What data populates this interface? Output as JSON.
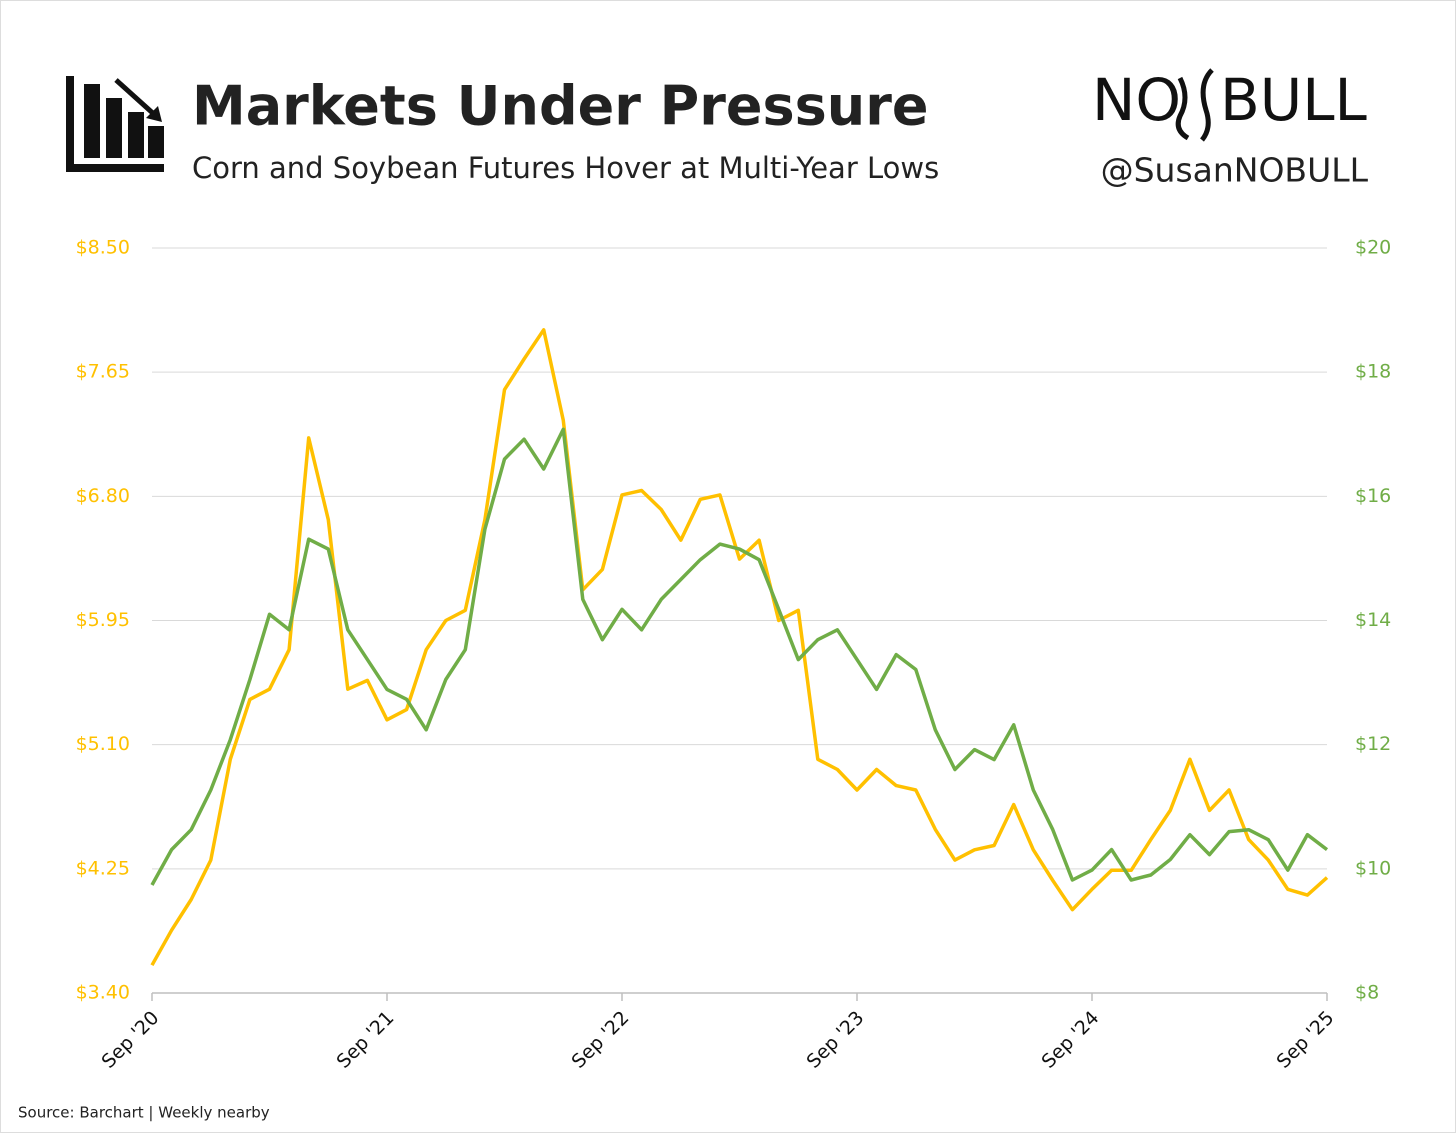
{
  "chart_data": {
    "type": "line",
    "title": "Markets Under Pressure",
    "subtitle": "Corn and Soybean Futures Hover at Multi-Year Lows",
    "brand": [
      "NO",
      "BULL"
    ],
    "handle": "@SusanNOBULL",
    "source": "Source: Barchart | Weekly nearby",
    "x": [
      "2020-09",
      "2020-10",
      "2020-11",
      "2020-12",
      "2021-01",
      "2021-02",
      "2021-03",
      "2021-04",
      "2021-05",
      "2021-06",
      "2021-07",
      "2021-08",
      "2021-09",
      "2021-10",
      "2021-11",
      "2021-12",
      "2022-01",
      "2022-02",
      "2022-03",
      "2022-04",
      "2022-05",
      "2022-06",
      "2022-07",
      "2022-08",
      "2022-09",
      "2022-10",
      "2022-11",
      "2022-12",
      "2023-01",
      "2023-02",
      "2023-03",
      "2023-04",
      "2023-05",
      "2023-06",
      "2023-07",
      "2023-08",
      "2023-09",
      "2023-10",
      "2023-11",
      "2023-12",
      "2024-01",
      "2024-02",
      "2024-03",
      "2024-04",
      "2024-05",
      "2024-06",
      "2024-07",
      "2024-08",
      "2024-09",
      "2024-10",
      "2024-11",
      "2024-12",
      "2025-01",
      "2025-02",
      "2025-03",
      "2025-04",
      "2025-05",
      "2025-06",
      "2025-07",
      "2025-08",
      "2025-09"
    ],
    "xticks": [
      {
        "value": "2020-09",
        "label": "Sep '20"
      },
      {
        "value": "2021-09",
        "label": "Sep '21"
      },
      {
        "value": "2022-09",
        "label": "Sep '22"
      },
      {
        "value": "2023-09",
        "label": "Sep '23"
      },
      {
        "value": "2024-09",
        "label": "Sep '24"
      },
      {
        "value": "2025-09",
        "label": "Sep '25"
      }
    ],
    "ylim": [
      3.4,
      8.5
    ],
    "yticks": [
      {
        "value": 3.4,
        "label": "$3.40"
      },
      {
        "value": 4.25,
        "label": "$4.25"
      },
      {
        "value": 5.1,
        "label": "$5.10"
      },
      {
        "value": 5.95,
        "label": "$5.95"
      },
      {
        "value": 6.8,
        "label": "$6.80"
      },
      {
        "value": 7.65,
        "label": "$7.65"
      },
      {
        "value": 8.5,
        "label": "$8.50"
      }
    ],
    "y2lim": [
      8,
      20
    ],
    "y2ticks": [
      {
        "value": 8,
        "label": "$8"
      },
      {
        "value": 10,
        "label": "$10"
      },
      {
        "value": 12,
        "label": "$12"
      },
      {
        "value": 14,
        "label": "$14"
      },
      {
        "value": 16,
        "label": "$16"
      },
      {
        "value": 18,
        "label": "$18"
      },
      {
        "value": 20,
        "label": "$20"
      }
    ],
    "grid": true,
    "series": [
      {
        "color": "#FFC000",
        "values": [
          3.59,
          3.83,
          4.04,
          4.31,
          5.0,
          5.41,
          5.48,
          5.75,
          7.2,
          6.64,
          5.48,
          5.54,
          5.27,
          5.34,
          5.75,
          5.95,
          6.02,
          6.64,
          7.53,
          7.74,
          7.94,
          7.32,
          6.16,
          6.3,
          6.81,
          6.84,
          6.71,
          6.5,
          6.78,
          6.81,
          6.37,
          6.5,
          5.95,
          6.02,
          5.0,
          4.93,
          4.79,
          4.93,
          4.82,
          4.79,
          4.52,
          4.31,
          4.38,
          4.41,
          4.69,
          4.38,
          4.17,
          3.97,
          4.11,
          4.24,
          4.24,
          4.45,
          4.65,
          5.0,
          4.65,
          4.79,
          4.45,
          4.31,
          4.11,
          4.07,
          4.19
        ]
      },
      {
        "color": "#70AD47",
        "axis": "y2",
        "values": [
          9.74,
          10.31,
          10.63,
          11.27,
          12.08,
          13.05,
          14.1,
          13.85,
          15.31,
          15.15,
          13.85,
          13.37,
          12.89,
          12.73,
          12.24,
          13.05,
          13.53,
          15.47,
          16.6,
          16.92,
          16.44,
          17.08,
          14.34,
          13.69,
          14.18,
          13.85,
          14.34,
          14.66,
          14.98,
          15.23,
          15.15,
          14.98,
          14.18,
          13.37,
          13.69,
          13.85,
          13.37,
          12.89,
          13.45,
          13.21,
          12.24,
          11.6,
          11.92,
          11.76,
          12.32,
          11.27,
          10.63,
          9.82,
          9.98,
          10.31,
          9.82,
          9.9,
          10.15,
          10.55,
          10.23,
          10.6,
          10.63,
          10.47,
          9.98,
          10.55,
          10.31
        ]
      }
    ]
  }
}
